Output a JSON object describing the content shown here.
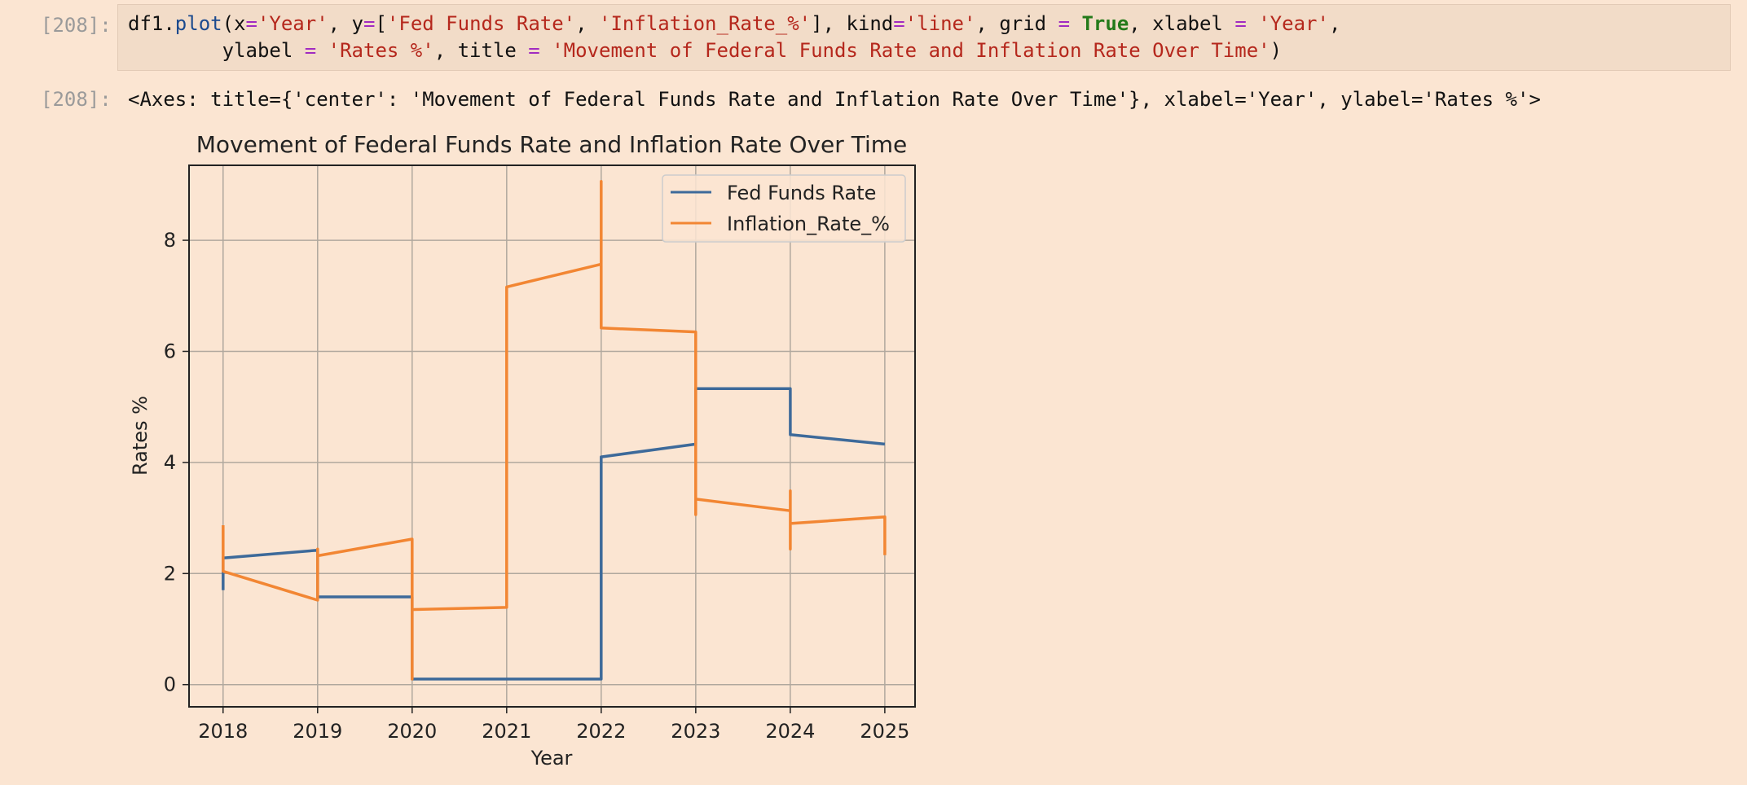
{
  "input_cell": {
    "prompt": "[208]:",
    "line1": {
      "p1": "df1.",
      "p2": "plot",
      "p3": "(x",
      "p4": "=",
      "p5": "'Year'",
      "p6": ", y",
      "p7": "=",
      "p8": "[",
      "p9": "'Fed Funds Rate'",
      "p10": ", ",
      "p11": "'Inflation_Rate_%'",
      "p12": "]",
      "p13": ", kind",
      "p14": "=",
      "p15": "'line'",
      "p16": ", grid ",
      "p17": "=",
      "p18": " ",
      "p19": "True",
      "p20": ", xlabel ",
      "p21": "=",
      "p22": " ",
      "p23": "'Year'",
      "p24": ","
    },
    "line2": {
      "p1": "        ylabel ",
      "p2": "=",
      "p3": " ",
      "p4": "'Rates %'",
      "p5": ", title ",
      "p6": "=",
      "p7": " ",
      "p8": "'Movement of Federal Funds Rate and Inflation Rate Over Time'",
      "p9": ")"
    }
  },
  "output_cell": {
    "prompt": "[208]:",
    "text": "<Axes: title={'center': 'Movement of Federal Funds Rate and Inflation Rate Over Time'}, xlabel='Year', ylabel='Rates %'>"
  },
  "colors": {
    "series_fed": "#3d6a9a",
    "series_infl": "#f28633"
  },
  "chart_data": {
    "type": "line",
    "title": "Movement of Federal Funds Rate and Inflation Rate Over Time",
    "xlabel": "Year",
    "ylabel": "Rates %",
    "xlim": [
      2017.64,
      2025.32
    ],
    "ylim": [
      -0.4,
      9.35
    ],
    "xticks": [
      "2018",
      "2019",
      "2020",
      "2021",
      "2022",
      "2023",
      "2024",
      "2025"
    ],
    "yticks": [
      "0",
      "2",
      "4",
      "6",
      "8"
    ],
    "grid": true,
    "legend": "top-right",
    "series": [
      {
        "name": "Fed Funds Rate",
        "x": [
          2018,
          2018,
          2019,
          2019,
          2020,
          2020,
          2021,
          2021,
          2022,
          2022,
          2023,
          2023,
          2024,
          2024,
          2025
        ],
        "y": [
          1.7,
          2.28,
          2.42,
          1.58,
          1.58,
          0.1,
          0.1,
          0.1,
          0.1,
          4.1,
          4.33,
          5.33,
          5.33,
          4.5,
          4.33
        ]
      },
      {
        "name": "Inflation_Rate_%",
        "x": [
          2018,
          2018,
          2019,
          2019,
          2019,
          2020,
          2020,
          2020,
          2020,
          2021,
          2021,
          2022,
          2022,
          2022,
          2023,
          2023,
          2023,
          2024,
          2024,
          2024,
          2024,
          2025,
          2025
        ],
        "y": [
          2.87,
          2.04,
          1.52,
          2.44,
          2.32,
          2.62,
          2.62,
          0.1,
          1.35,
          1.39,
          7.16,
          7.57,
          9.06,
          6.42,
          6.35,
          3.06,
          3.34,
          3.13,
          3.49,
          2.44,
          2.9,
          3.02,
          2.33
        ]
      }
    ]
  }
}
